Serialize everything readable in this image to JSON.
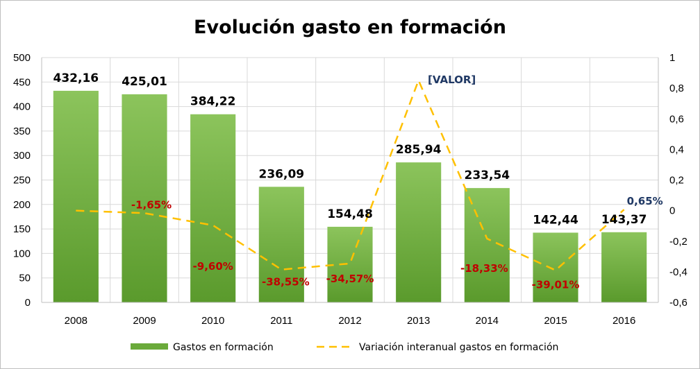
{
  "chart_data": {
    "type": "bar",
    "title": "Evolución gasto en formación",
    "categories": [
      "2008",
      "2009",
      "2010",
      "2011",
      "2012",
      "2013",
      "2014",
      "2015",
      "2016"
    ],
    "ylim": [
      0,
      500
    ],
    "y_ticks": [
      "0",
      "50",
      "100",
      "150",
      "200",
      "250",
      "300",
      "350",
      "400",
      "450",
      "500"
    ],
    "y2lim": [
      -0.6,
      1
    ],
    "y2_ticks": [
      "-0,6",
      "-0,4",
      "-0,2",
      "0",
      "0,2",
      "0,4",
      "0,6",
      "0,8",
      "1"
    ],
    "grid": true,
    "legend_position": "bottom",
    "series": [
      {
        "name": "Gastos en formación",
        "type": "bar",
        "axis": "left",
        "color": "#6aaa3a",
        "values": [
          432.16,
          425.01,
          384.22,
          236.09,
          154.48,
          285.94,
          233.54,
          142.44,
          143.37
        ],
        "labels": [
          "432,16",
          "425,01",
          "384,22",
          "236,09",
          "154,48",
          "285,94",
          "233,54",
          "142,44",
          "143,37"
        ]
      },
      {
        "name": "Variación interanual gastos en formación",
        "type": "line",
        "style": "dashed",
        "axis": "right",
        "color": "#ffc000",
        "values": [
          0,
          -0.0165,
          -0.096,
          -0.3855,
          -0.3457,
          0.851,
          -0.1833,
          -0.3901,
          0.0065
        ],
        "labels": [
          "",
          "-1,65%",
          "-9,60%",
          "-38,55%",
          "-34,57%",
          "[VALOR]",
          "-18,33%",
          "-39,01%",
          "0,65%"
        ],
        "label_colors": [
          "#c00000",
          "#c00000",
          "#c00000",
          "#c00000",
          "#c00000",
          "#1f3864",
          "#c00000",
          "#c00000",
          "#1f3864"
        ]
      }
    ]
  }
}
